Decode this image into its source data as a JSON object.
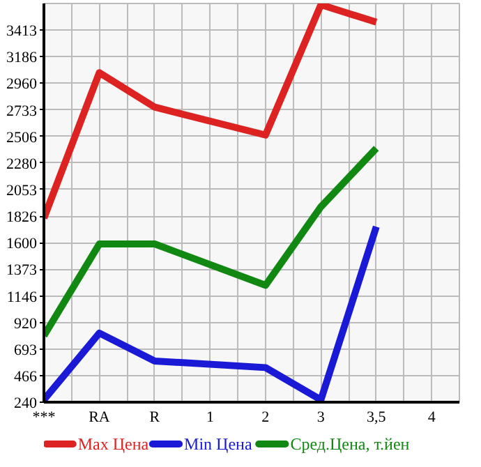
{
  "chart_data": {
    "type": "line",
    "categories": [
      "***",
      "RA",
      "R",
      "1",
      "2",
      "3",
      "3,5",
      "4"
    ],
    "series": [
      {
        "name": "Max Цена",
        "color": "#dd2222",
        "values": [
          1810,
          3050,
          2756,
          null,
          2518,
          3629,
          3481,
          null
        ]
      },
      {
        "name": "Min Цена",
        "color": "#1a1ad6",
        "values": [
          260,
          829,
          591,
          null,
          535,
          260,
          1736,
          null
        ]
      },
      {
        "name": "Сред.Цена, т.йен",
        "color": "#118811",
        "values": [
          807,
          1589,
          1589,
          null,
          1237,
          1906,
          2405,
          null
        ]
      }
    ],
    "ylim": [
      240,
      3640
    ],
    "yticks": [
      240,
      466,
      693,
      920,
      1146,
      1373,
      1600,
      1826,
      2053,
      2280,
      2506,
      2733,
      2960,
      3186,
      3413
    ],
    "grid": true,
    "legend": "bottom",
    "marker": "none",
    "line_style": "solid"
  }
}
